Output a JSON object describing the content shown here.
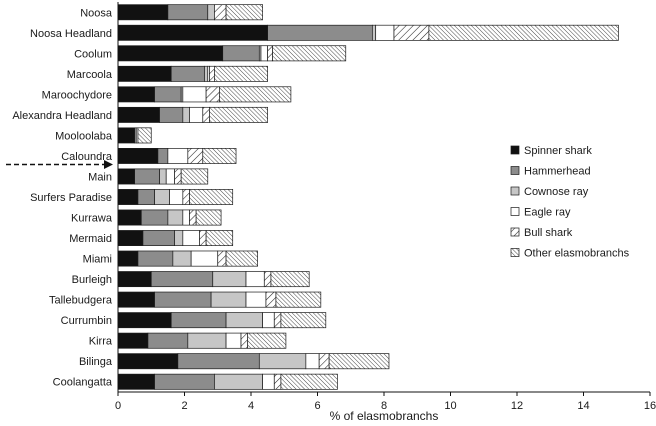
{
  "chart_data": {
    "type": "bar",
    "orientation": "horizontal",
    "stacked": true,
    "xlabel": "% of elasmobranchs",
    "xlim": [
      0,
      16
    ],
    "xticks": [
      0,
      2,
      4,
      6,
      8,
      10,
      12,
      14,
      16
    ],
    "grid": false,
    "legend_position": "right",
    "categories": [
      "Noosa",
      "Noosa Headland",
      "Coolum",
      "Marcoola",
      "Maroochydore",
      "Alexandra Headland",
      "Mooloolaba",
      "Caloundra",
      "Main",
      "Surfers Paradise",
      "Kurrawa",
      "Mermaid",
      "Miami",
      "Burleigh",
      "Tallebudgera",
      "Currumbin",
      "Kirra",
      "Bilinga",
      "Coolangatta"
    ],
    "series": [
      {
        "name": "Spinner shark",
        "color": "#111111",
        "pattern": "solid",
        "values": [
          1.5,
          4.5,
          3.15,
          1.6,
          1.1,
          1.25,
          0.5,
          1.2,
          0.5,
          0.6,
          0.7,
          0.75,
          0.6,
          1.0,
          1.1,
          1.6,
          0.9,
          1.8,
          1.1
        ]
      },
      {
        "name": "Hammerhead",
        "color": "#8c8c8c",
        "pattern": "solid",
        "values": [
          1.2,
          3.15,
          1.1,
          1.0,
          0.8,
          0.7,
          0.05,
          0.3,
          0.75,
          0.5,
          0.8,
          0.95,
          1.05,
          1.85,
          1.7,
          1.65,
          1.2,
          2.45,
          1.8
        ]
      },
      {
        "name": "Cownose ray",
        "color": "#c6c6c6",
        "pattern": "solid",
        "values": [
          0.2,
          0.1,
          0.05,
          0.1,
          0.05,
          0.2,
          0.0,
          0.0,
          0.2,
          0.45,
          0.45,
          0.25,
          0.55,
          1.0,
          1.05,
          1.1,
          1.15,
          1.4,
          1.45
        ]
      },
      {
        "name": "Eagle ray",
        "color": "#ffffff",
        "pattern": "solid",
        "values": [
          0.0,
          0.55,
          0.2,
          0.05,
          0.7,
          0.4,
          0.05,
          0.6,
          0.25,
          0.4,
          0.2,
          0.5,
          0.8,
          0.55,
          0.6,
          0.35,
          0.45,
          0.4,
          0.35
        ]
      },
      {
        "name": "Bull shark",
        "color": "#ffffff",
        "pattern": "diag-sparse",
        "values": [
          0.35,
          1.05,
          0.15,
          0.15,
          0.4,
          0.2,
          0.0,
          0.45,
          0.2,
          0.2,
          0.2,
          0.2,
          0.25,
          0.2,
          0.3,
          0.2,
          0.2,
          0.3,
          0.2
        ]
      },
      {
        "name": "Other elasmobranchs",
        "color": "#ffffff",
        "pattern": "diag-dense",
        "values": [
          1.1,
          5.7,
          2.2,
          1.6,
          2.15,
          1.75,
          0.4,
          1.0,
          0.8,
          1.3,
          0.75,
          0.8,
          0.95,
          1.15,
          1.35,
          1.35,
          1.15,
          1.8,
          1.7
        ]
      }
    ]
  },
  "ui": {
    "arrow_marker": "dashed-arrow"
  }
}
